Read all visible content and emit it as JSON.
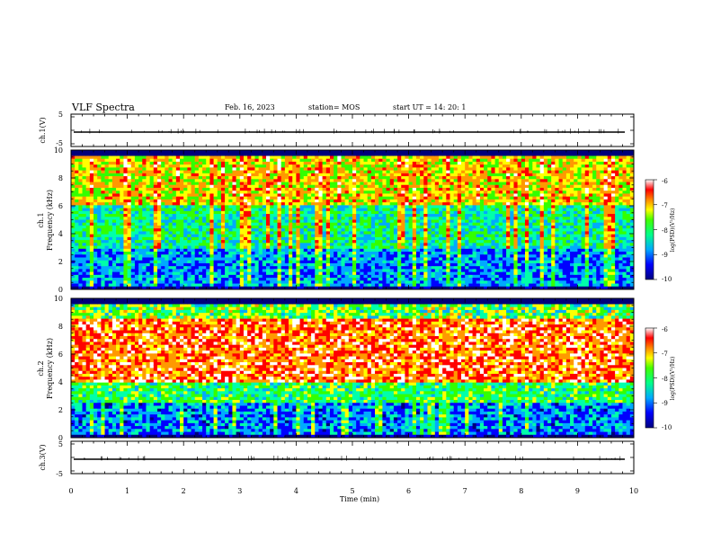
{
  "header": {
    "title": "VLF Spectra",
    "date": "Feb. 16, 2023",
    "station": "station= MOS",
    "start": "start  UT =   14: 20: 1"
  },
  "chart_data": [
    {
      "type": "line",
      "panel": "ch1-waveform",
      "ylabel": "ch.1(V)",
      "ylim": [
        -5,
        5
      ],
      "yticks": [
        "5",
        "-5"
      ],
      "xlim": [
        0,
        10
      ],
      "series": [
        {
          "values": [
            0,
            0,
            0,
            0,
            0,
            0,
            0,
            0,
            0,
            0
          ]
        }
      ]
    },
    {
      "type": "heatmap",
      "panel": "ch1-spectrogram",
      "ylabel_lines": [
        "ch.1",
        "Frequency  (kHz)"
      ],
      "ylim": [
        0,
        10
      ],
      "yticks": [
        "0",
        "2",
        "4",
        "6",
        "8",
        "10"
      ],
      "xlim": [
        0,
        10
      ],
      "colorbar": {
        "label": "log(PSD)(V²/Hz)",
        "range": [
          -10,
          -6
        ],
        "ticks": [
          "-6",
          "-7",
          "-8",
          "-9",
          "-10"
        ]
      }
    },
    {
      "type": "heatmap",
      "panel": "ch2-spectrogram",
      "ylabel_lines": [
        "ch.2",
        "Frequency  (kHz)"
      ],
      "ylim": [
        0,
        10
      ],
      "yticks": [
        "0",
        "2",
        "4",
        "6",
        "8",
        "10"
      ],
      "xlim": [
        0,
        10
      ],
      "colorbar": {
        "label": "log(PSD)(V²/Hz)",
        "range": [
          -10,
          -6
        ],
        "ticks": [
          "-6",
          "-7",
          "-8",
          "-9",
          "-10"
        ]
      }
    },
    {
      "type": "line",
      "panel": "ch3-waveform",
      "ylabel": "ch.3(V)",
      "ylim": [
        -5,
        5
      ],
      "yticks": [
        "5",
        "-5"
      ],
      "xlim": [
        0,
        10
      ],
      "xlabel": "Time  (min)",
      "xticks": [
        "0",
        "1",
        "2",
        "3",
        "4",
        "5",
        "6",
        "7",
        "8",
        "9",
        "10"
      ],
      "series": [
        {
          "values": [
            0,
            0,
            0,
            0,
            0,
            0,
            0,
            0,
            0,
            0
          ]
        }
      ]
    }
  ],
  "colors": {
    "scale": [
      "#00007a",
      "#0000ff",
      "#00aaff",
      "#00ffaa",
      "#33ff00",
      "#ffff00",
      "#ff9900",
      "#ff0000",
      "#ffffff"
    ]
  }
}
